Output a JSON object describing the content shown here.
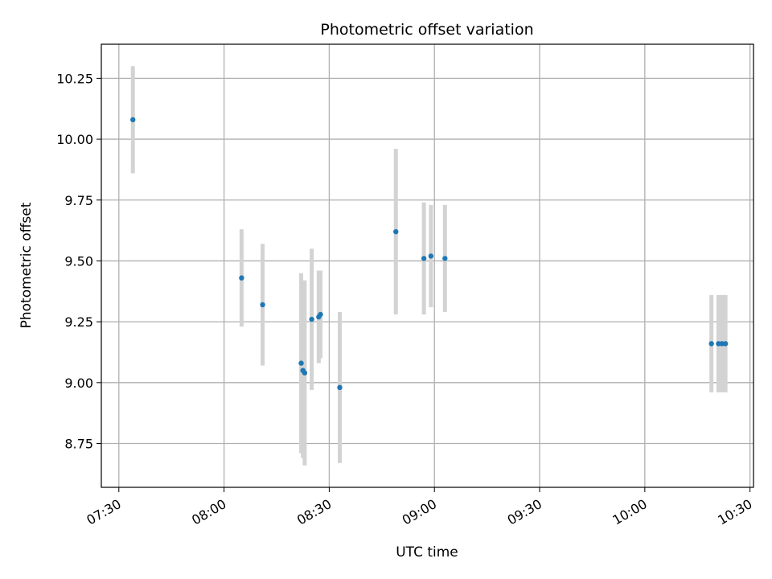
{
  "chart_data": {
    "type": "scatter",
    "title": "Photometric offset variation",
    "xlabel": "UTC time",
    "ylabel": "Photometric offset",
    "grid": true,
    "x_range": [
      "07:25",
      "10:31"
    ],
    "ylim": [
      8.57,
      10.39
    ],
    "x_ticks": [
      "07:30",
      "08:00",
      "08:30",
      "09:00",
      "09:30",
      "10:00",
      "10:30"
    ],
    "y_ticks": [
      "8.75",
      "9.00",
      "9.25",
      "9.50",
      "9.75",
      "10.00",
      "10.25"
    ],
    "colors": {
      "point": "#1f77b4",
      "errorbar": "#d3d3d3",
      "grid": "#b0b0b0"
    },
    "points": [
      {
        "x": "07:34",
        "y": 10.08,
        "err": 0.22
      },
      {
        "x": "08:05",
        "y": 9.43,
        "err": 0.2
      },
      {
        "x": "08:11",
        "y": 9.32,
        "err": 0.25
      },
      {
        "x": "08:22",
        "y": 9.08,
        "err": 0.37
      },
      {
        "x": "08:22:30",
        "y": 9.05,
        "err": 0.36
      },
      {
        "x": "08:23",
        "y": 9.04,
        "err": 0.38
      },
      {
        "x": "08:25",
        "y": 9.26,
        "err": 0.29
      },
      {
        "x": "08:27",
        "y": 9.27,
        "err": 0.19
      },
      {
        "x": "08:27:30",
        "y": 9.28,
        "err": 0.18
      },
      {
        "x": "08:33",
        "y": 8.98,
        "err": 0.31
      },
      {
        "x": "08:49",
        "y": 9.62,
        "err": 0.34
      },
      {
        "x": "08:57",
        "y": 9.51,
        "err": 0.23
      },
      {
        "x": "08:59",
        "y": 9.52,
        "err": 0.21
      },
      {
        "x": "09:03",
        "y": 9.51,
        "err": 0.22
      },
      {
        "x": "10:19",
        "y": 9.16,
        "err": 0.2
      },
      {
        "x": "10:21",
        "y": 9.16,
        "err": 0.2
      },
      {
        "x": "10:22",
        "y": 9.16,
        "err": 0.2
      },
      {
        "x": "10:23",
        "y": 9.16,
        "err": 0.2
      }
    ]
  }
}
